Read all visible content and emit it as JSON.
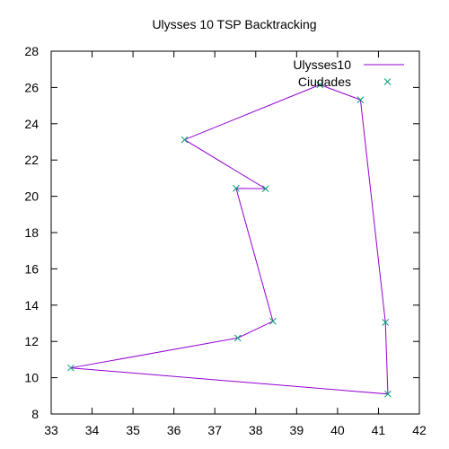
{
  "chart_data": {
    "type": "line",
    "title": "Ulysses 10 TSP Backtracking",
    "xlabel": "",
    "ylabel": "",
    "xlim": [
      33,
      42
    ],
    "ylim": [
      8,
      28
    ],
    "xticks": [
      33,
      34,
      35,
      36,
      37,
      38,
      39,
      40,
      41,
      42
    ],
    "yticks": [
      8,
      10,
      12,
      14,
      16,
      18,
      20,
      22,
      24,
      26,
      28
    ],
    "grid": false,
    "legend": "top-right",
    "series": [
      {
        "name": "Ulysses10",
        "style": "line",
        "color": "#9400d3",
        "x": [
          39.57,
          40.56,
          41.17,
          41.23,
          33.48,
          37.56,
          38.42,
          37.52,
          38.24,
          36.26,
          39.57
        ],
        "y": [
          26.15,
          25.32,
          13.05,
          9.1,
          10.54,
          12.19,
          13.11,
          20.44,
          20.42,
          23.12,
          26.15
        ]
      },
      {
        "name": "Ciudades",
        "style": "points",
        "marker": "x",
        "color": "#009e73",
        "x": [
          39.57,
          40.56,
          41.17,
          41.23,
          33.48,
          37.56,
          38.42,
          37.52,
          38.24,
          36.26
        ],
        "y": [
          26.15,
          25.32,
          13.05,
          9.1,
          10.54,
          12.19,
          13.11,
          20.44,
          20.42,
          23.12
        ]
      }
    ]
  }
}
